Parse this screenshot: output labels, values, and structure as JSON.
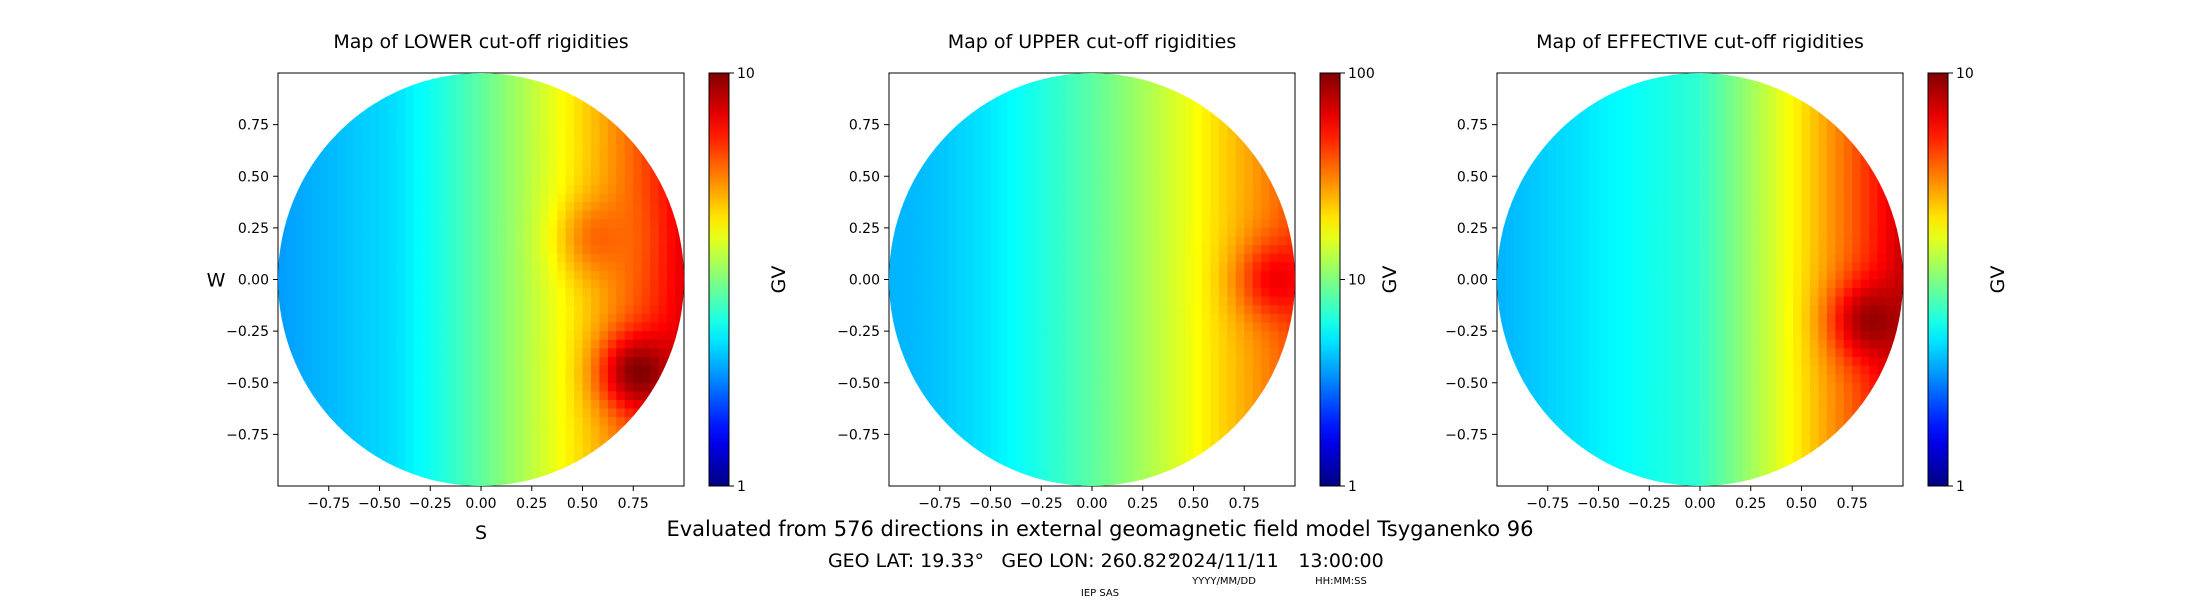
{
  "chart_data": [
    {
      "type": "heatmap",
      "title": "Map of LOWER cut-off rigidities",
      "xlabel": "S",
      "ylabel": "W",
      "xlim": [
        -1,
        1
      ],
      "ylim": [
        -1,
        1
      ],
      "xticks": [
        "−0.75",
        "−0.50",
        "−0.25",
        "0.00",
        "0.25",
        "0.50",
        "0.75"
      ],
      "yticks": [
        "0.75",
        "0.50",
        "0.25",
        "0.00",
        "−0.25",
        "−0.50",
        "−0.75"
      ],
      "colorbar": {
        "label": "GV",
        "scale": "log",
        "range": [
          1,
          10
        ],
        "ticks": [
          "10",
          "1"
        ],
        "colormap": "jet"
      },
      "field": {
        "base_gv": 3.2,
        "east_gv": 8.0,
        "hotspots": [
          {
            "x": 0.78,
            "y": -0.45,
            "gv": 10.0
          },
          {
            "x": 0.6,
            "y": 0.2,
            "gv": 6.0
          }
        ],
        "west_gv": 1.8
      }
    },
    {
      "type": "heatmap",
      "title": "Map of UPPER cut-off rigidities",
      "xlabel": "",
      "ylabel": "",
      "xlim": [
        -1,
        1
      ],
      "ylim": [
        -1,
        1
      ],
      "xticks": [
        "−0.75",
        "−0.50",
        "−0.25",
        "0.00",
        "0.25",
        "0.50",
        "0.75"
      ],
      "yticks": [
        "0.75",
        "0.50",
        "0.25",
        "0.00",
        "−0.25",
        "−0.50",
        "−0.75"
      ],
      "colorbar": {
        "label": "GV",
        "scale": "log",
        "range": [
          1,
          100
        ],
        "ticks": [
          "100",
          "10",
          "1"
        ],
        "colormap": "jet"
      },
      "field": {
        "base_gv": 7.0,
        "east_gv": 40.0,
        "hotspots": [
          {
            "x": 0.92,
            "y": 0.0,
            "gv": 60.0
          }
        ],
        "west_gv": 4.0
      }
    },
    {
      "type": "heatmap",
      "title": "Map of EFFECTIVE cut-off rigidities",
      "xlabel": "",
      "ylabel": "",
      "xlim": [
        -1,
        1
      ],
      "ylim": [
        -1,
        1
      ],
      "xticks": [
        "−0.75",
        "−0.50",
        "−0.25",
        "0.00",
        "0.25",
        "0.50",
        "0.75"
      ],
      "yticks": [
        "0.75",
        "0.50",
        "0.25",
        "0.00",
        "−0.25",
        "−0.50",
        "−0.75"
      ],
      "colorbar": {
        "label": "GV",
        "scale": "log",
        "range": [
          1,
          10
        ],
        "ticks": [
          "10",
          "1"
        ],
        "colormap": "jet"
      },
      "field": {
        "base_gv": 3.5,
        "east_gv": 8.5,
        "hotspots": [
          {
            "x": 0.85,
            "y": -0.2,
            "gv": 9.5
          }
        ],
        "west_gv": 1.5
      }
    }
  ],
  "footer": {
    "line1": "Evaluated from 576 directions in external geomagnetic field model Tsyganenko 96",
    "lat": "GEO LAT: 19.33°",
    "lon": "GEO LON: 260.82°",
    "date": "2024/11/11",
    "time": "13:00:00",
    "date_format": "YYYY/MM/DD",
    "time_format": "HH:MM:SS",
    "credit": "IEP SAS"
  }
}
